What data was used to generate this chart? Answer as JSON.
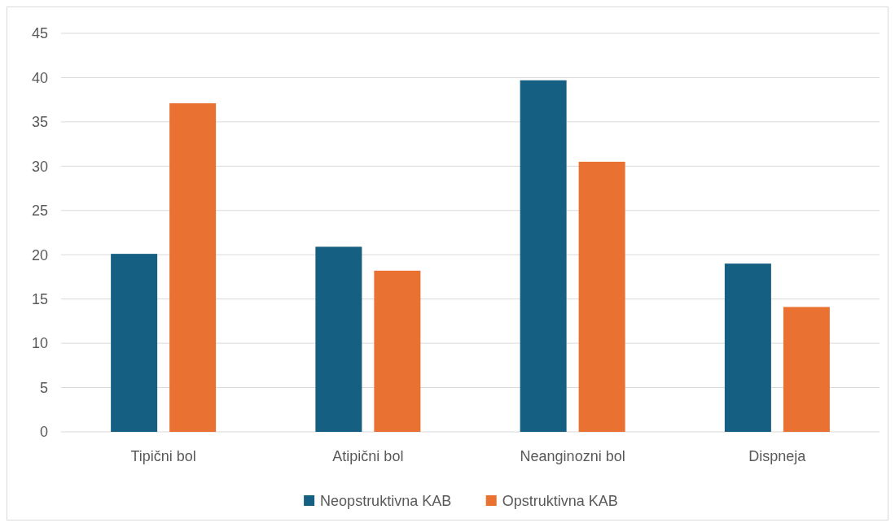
{
  "chart_data": {
    "type": "bar",
    "categories": [
      "Tipični bol",
      "Atipični bol",
      "Neanginozni bol",
      "Dispneja"
    ],
    "series": [
      {
        "name": "Neopstruktivna KAB",
        "color": "#156082",
        "values": [
          20.1,
          20.9,
          39.7,
          19.0
        ]
      },
      {
        "name": "Opstruktivna KAB",
        "color": "#e97132",
        "values": [
          37.1,
          18.2,
          30.5,
          14.1
        ]
      }
    ],
    "ylim": [
      0,
      45
    ],
    "yticks": [
      0,
      5,
      10,
      15,
      20,
      25,
      30,
      35,
      40,
      45
    ],
    "grid": "y",
    "legend": "bottom"
  }
}
